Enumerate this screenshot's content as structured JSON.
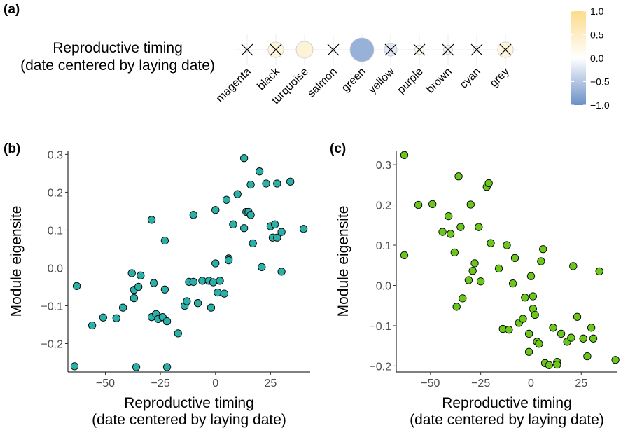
{
  "panels": {
    "a": {
      "tag": "(a)"
    },
    "b": {
      "tag": "(b)"
    },
    "c": {
      "tag": "(c)"
    }
  },
  "chart_data": [
    {
      "type": "heatmap",
      "panel": "a",
      "row_label_lines": [
        "Reproductive timing",
        "(date centered by laying date)"
      ],
      "categories": [
        "magenta",
        "black",
        "turquoise",
        "salmon",
        "green",
        "yellow",
        "purple",
        "brown",
        "cyan",
        "grey"
      ],
      "values": [
        0.02,
        0.3,
        0.35,
        0.0,
        -0.7,
        -0.2,
        0.1,
        -0.1,
        -0.05,
        0.3
      ],
      "significant": [
        false,
        false,
        true,
        false,
        true,
        false,
        false,
        false,
        false,
        false
      ],
      "legend": {
        "ticks": [
          "1.0",
          "0.5",
          "0.0",
          "−0.5",
          "−1.0"
        ],
        "tick_values": [
          1.0,
          0.5,
          0.0,
          -0.5,
          -1.0
        ],
        "limits": [
          -1,
          1
        ]
      },
      "colors": {
        "low": "#6a8fc8",
        "mid": "#ffffff",
        "high": "#fcdc8c"
      }
    },
    {
      "type": "scatter",
      "panel": "b",
      "xlabel_lines": [
        "Reproductive timing",
        "(date centered by laying date)"
      ],
      "ylabel": "Module eigensite",
      "xticks": [
        -50,
        -25,
        0,
        25
      ],
      "xtick_labels": [
        "−50",
        "−25",
        "0",
        "25"
      ],
      "yticks": [
        -0.2,
        -0.1,
        0.0,
        0.1,
        0.2,
        0.3
      ],
      "ytick_labels": [
        "−0.2",
        "−0.1",
        "0.0",
        "0.1",
        "0.2",
        "0.3"
      ],
      "xlim": [
        -67,
        43
      ],
      "ylim": [
        -0.275,
        0.31
      ],
      "color": "#2ab0a8",
      "x": [
        -64,
        -63,
        -56,
        -51,
        -45,
        -42,
        -38,
        -37,
        -37,
        -36,
        -35,
        -34,
        -29,
        -29,
        -28,
        -27,
        -26,
        -24,
        -23,
        -23,
        -22,
        -22,
        -17,
        -14,
        -13,
        -12,
        -10,
        -10,
        -8,
        -6,
        -3,
        -2,
        -1,
        0,
        0,
        1,
        2,
        4,
        5,
        6,
        6,
        8,
        10,
        13,
        13,
        14,
        15,
        16,
        16,
        17,
        20,
        21,
        23,
        25,
        26,
        27,
        28,
        28,
        30,
        30,
        34,
        40
      ],
      "y": [
        -0.26,
        -0.048,
        -0.152,
        -0.131,
        -0.133,
        -0.105,
        -0.014,
        -0.058,
        -0.08,
        -0.262,
        -0.05,
        -0.02,
        0.127,
        -0.13,
        -0.04,
        -0.122,
        -0.135,
        -0.13,
        -0.057,
        0.072,
        -0.262,
        -0.141,
        -0.173,
        -0.1,
        -0.088,
        -0.037,
        0.14,
        -0.037,
        -0.093,
        -0.034,
        -0.034,
        -0.105,
        -0.038,
        0.153,
        0.012,
        -0.065,
        -0.034,
        -0.068,
        0.18,
        0.025,
        0.02,
        0.115,
        0.195,
        0.105,
        0.29,
        0.148,
        0.148,
        0.14,
        0.22,
        0.065,
        0.255,
        0.002,
        0.223,
        0.11,
        0.08,
        0.115,
        0.223,
        0.08,
        -0.01,
        0.095,
        0.228,
        0.103
      ]
    },
    {
      "type": "scatter",
      "panel": "c",
      "xlabel_lines": [
        "Reproductive timing",
        "(date centered by laying date)"
      ],
      "ylabel": "Module eigensite",
      "xticks": [
        -50,
        -25,
        0,
        25
      ],
      "xtick_labels": [
        "−50",
        "−25",
        "0",
        "25"
      ],
      "yticks": [
        -0.2,
        -0.1,
        0.0,
        0.1,
        0.2,
        0.3
      ],
      "ytick_labels": [
        "−0.2",
        "−0.1",
        "0.0",
        "0.1",
        "0.2",
        "0.3"
      ],
      "xlim": [
        -67,
        43
      ],
      "ylim": [
        -0.215,
        0.335
      ],
      "color": "#6bc71c",
      "x": [
        -63,
        -63,
        -56,
        -49,
        -44,
        -41,
        -40,
        -38,
        -37,
        -36,
        -35,
        -34,
        -31,
        -30,
        -29,
        -28,
        -26,
        -25,
        -22,
        -21,
        -20,
        -16,
        -14,
        -12,
        -11,
        -9,
        -8,
        -6,
        -4,
        -3,
        -1,
        -1,
        0,
        1,
        1,
        2,
        3,
        4,
        5,
        6,
        7,
        9,
        11,
        13,
        13,
        15,
        18,
        20,
        21,
        23,
        26,
        28,
        30,
        31,
        34,
        42
      ],
      "y": [
        0.075,
        0.324,
        0.2,
        0.202,
        0.133,
        0.172,
        0.128,
        0.082,
        -0.053,
        0.271,
        0.145,
        -0.032,
        0.013,
        0.201,
        0.036,
        0.055,
        0.145,
        0.01,
        0.245,
        0.254,
        0.105,
        0.042,
        -0.108,
        0.1,
        -0.11,
        0.005,
        0.068,
        -0.093,
        -0.083,
        -0.03,
        -0.12,
        -0.165,
        0.023,
        -0.027,
        -0.058,
        -0.073,
        -0.14,
        -0.145,
        0.06,
        0.09,
        -0.193,
        -0.198,
        -0.105,
        -0.19,
        -0.197,
        -0.12,
        -0.14,
        -0.13,
        0.048,
        -0.078,
        -0.132,
        -0.176,
        -0.105,
        -0.132,
        0.035,
        -0.185
      ]
    }
  ]
}
